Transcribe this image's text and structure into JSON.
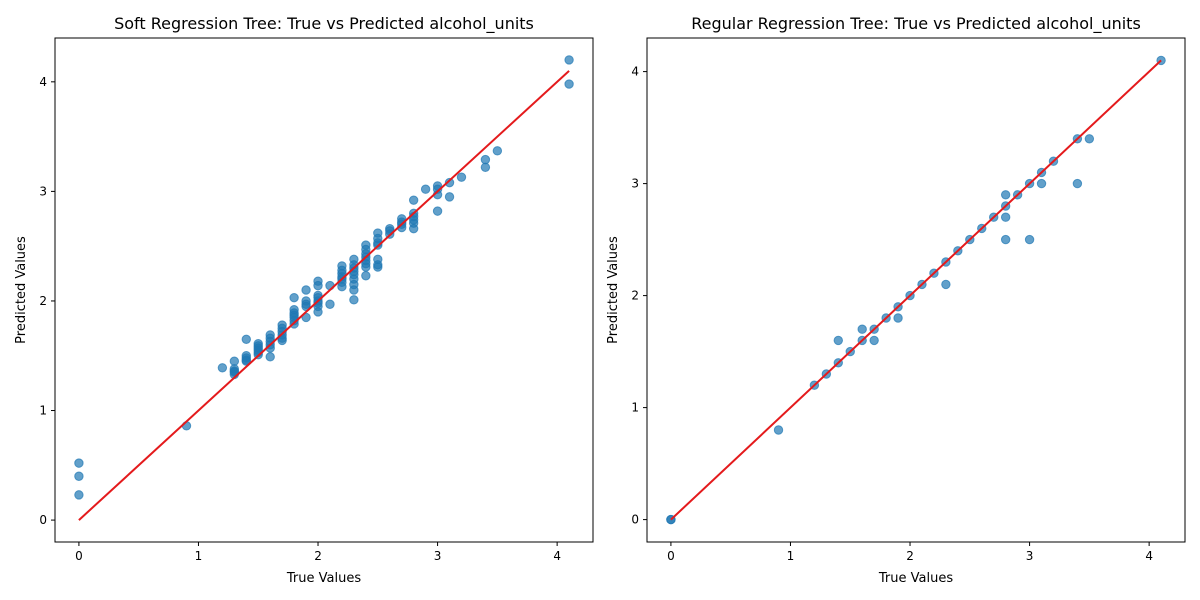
{
  "chart_data": [
    {
      "type": "scatter",
      "title": "Soft Regression Tree: True vs Predicted alcohol_units",
      "xlabel": "True Values",
      "ylabel": "Predicted Values",
      "xlim": [
        -0.2,
        4.3
      ],
      "ylim": [
        -0.2,
        4.4
      ],
      "xticks": [
        0,
        1,
        2,
        3,
        4
      ],
      "yticks": [
        0,
        1,
        2,
        3,
        4
      ],
      "point_color": "#1f77b4",
      "line_color": "#e41a1c",
      "reference_line": [
        [
          0,
          0
        ],
        [
          4.1,
          4.1
        ]
      ],
      "points": [
        [
          0.0,
          0.52
        ],
        [
          0.0,
          0.4
        ],
        [
          0.0,
          0.23
        ],
        [
          0.9,
          0.86
        ],
        [
          1.2,
          1.39
        ],
        [
          1.3,
          1.45
        ],
        [
          1.3,
          1.38
        ],
        [
          1.3,
          1.36
        ],
        [
          1.3,
          1.35
        ],
        [
          1.3,
          1.33
        ],
        [
          1.4,
          1.65
        ],
        [
          1.4,
          1.5
        ],
        [
          1.4,
          1.48
        ],
        [
          1.4,
          1.46
        ],
        [
          1.4,
          1.45
        ],
        [
          1.5,
          1.61
        ],
        [
          1.5,
          1.59
        ],
        [
          1.5,
          1.57
        ],
        [
          1.5,
          1.55
        ],
        [
          1.5,
          1.53
        ],
        [
          1.5,
          1.51
        ],
        [
          1.6,
          1.69
        ],
        [
          1.6,
          1.66
        ],
        [
          1.6,
          1.63
        ],
        [
          1.6,
          1.6
        ],
        [
          1.6,
          1.57
        ],
        [
          1.6,
          1.49
        ],
        [
          1.7,
          1.78
        ],
        [
          1.7,
          1.75
        ],
        [
          1.7,
          1.72
        ],
        [
          1.7,
          1.69
        ],
        [
          1.7,
          1.66
        ],
        [
          1.7,
          1.64
        ],
        [
          1.8,
          2.03
        ],
        [
          1.8,
          1.92
        ],
        [
          1.8,
          1.89
        ],
        [
          1.8,
          1.87
        ],
        [
          1.8,
          1.85
        ],
        [
          1.8,
          1.82
        ],
        [
          1.8,
          1.79
        ],
        [
          1.9,
          2.1
        ],
        [
          1.9,
          2.0
        ],
        [
          1.9,
          1.97
        ],
        [
          1.9,
          1.95
        ],
        [
          1.9,
          1.85
        ],
        [
          2.0,
          2.18
        ],
        [
          2.0,
          2.14
        ],
        [
          2.0,
          2.05
        ],
        [
          2.0,
          2.03
        ],
        [
          2.0,
          2.0
        ],
        [
          2.0,
          1.98
        ],
        [
          2.0,
          1.95
        ],
        [
          2.0,
          1.9
        ],
        [
          2.1,
          2.14
        ],
        [
          2.1,
          1.97
        ],
        [
          2.2,
          2.32
        ],
        [
          2.2,
          2.28
        ],
        [
          2.2,
          2.25
        ],
        [
          2.2,
          2.22
        ],
        [
          2.2,
          2.2
        ],
        [
          2.2,
          2.17
        ],
        [
          2.2,
          2.13
        ],
        [
          2.3,
          2.38
        ],
        [
          2.3,
          2.33
        ],
        [
          2.3,
          2.3
        ],
        [
          2.3,
          2.27
        ],
        [
          2.3,
          2.24
        ],
        [
          2.3,
          2.2
        ],
        [
          2.3,
          2.15
        ],
        [
          2.3,
          2.1
        ],
        [
          2.3,
          2.01
        ],
        [
          2.4,
          2.51
        ],
        [
          2.4,
          2.47
        ],
        [
          2.4,
          2.43
        ],
        [
          2.4,
          2.4
        ],
        [
          2.4,
          2.37
        ],
        [
          2.4,
          2.34
        ],
        [
          2.4,
          2.31
        ],
        [
          2.4,
          2.23
        ],
        [
          2.5,
          2.62
        ],
        [
          2.5,
          2.57
        ],
        [
          2.5,
          2.53
        ],
        [
          2.5,
          2.51
        ],
        [
          2.5,
          2.38
        ],
        [
          2.5,
          2.33
        ],
        [
          2.5,
          2.31
        ],
        [
          2.6,
          2.66
        ],
        [
          2.6,
          2.64
        ],
        [
          2.6,
          2.61
        ],
        [
          2.7,
          2.75
        ],
        [
          2.7,
          2.72
        ],
        [
          2.7,
          2.7
        ],
        [
          2.7,
          2.67
        ],
        [
          2.8,
          2.92
        ],
        [
          2.8,
          2.8
        ],
        [
          2.8,
          2.77
        ],
        [
          2.8,
          2.74
        ],
        [
          2.8,
          2.71
        ],
        [
          2.8,
          2.66
        ],
        [
          2.9,
          3.02
        ],
        [
          3.0,
          3.05
        ],
        [
          3.0,
          3.02
        ],
        [
          3.0,
          2.97
        ],
        [
          3.0,
          2.82
        ],
        [
          3.1,
          3.08
        ],
        [
          3.1,
          2.95
        ],
        [
          3.2,
          3.13
        ],
        [
          3.4,
          3.29
        ],
        [
          3.4,
          3.22
        ],
        [
          3.5,
          3.37
        ],
        [
          4.1,
          4.2
        ],
        [
          4.1,
          3.98
        ]
      ]
    },
    {
      "type": "scatter",
      "title": "Regular Regression Tree: True vs Predicted alcohol_units",
      "xlabel": "True Values",
      "ylabel": "Predicted Values",
      "xlim": [
        -0.2,
        4.3
      ],
      "ylim": [
        -0.2,
        4.3
      ],
      "xticks": [
        0,
        1,
        2,
        3,
        4
      ],
      "yticks": [
        0,
        1,
        2,
        3,
        4
      ],
      "point_color": "#1f77b4",
      "line_color": "#e41a1c",
      "reference_line": [
        [
          0,
          0
        ],
        [
          4.1,
          4.1
        ]
      ],
      "points": [
        [
          0.0,
          0.0
        ],
        [
          0.0,
          0.0
        ],
        [
          0.9,
          0.8
        ],
        [
          1.2,
          1.2
        ],
        [
          1.3,
          1.3
        ],
        [
          1.4,
          1.4
        ],
        [
          1.4,
          1.6
        ],
        [
          1.5,
          1.5
        ],
        [
          1.6,
          1.6
        ],
        [
          1.6,
          1.7
        ],
        [
          1.7,
          1.7
        ],
        [
          1.7,
          1.6
        ],
        [
          1.8,
          1.8
        ],
        [
          1.9,
          1.9
        ],
        [
          1.9,
          1.8
        ],
        [
          2.0,
          2.0
        ],
        [
          2.1,
          2.1
        ],
        [
          2.2,
          2.2
        ],
        [
          2.3,
          2.3
        ],
        [
          2.3,
          2.1
        ],
        [
          2.4,
          2.4
        ],
        [
          2.5,
          2.5
        ],
        [
          2.6,
          2.6
        ],
        [
          2.7,
          2.7
        ],
        [
          2.8,
          2.8
        ],
        [
          2.8,
          2.9
        ],
        [
          2.8,
          2.7
        ],
        [
          2.8,
          2.5
        ],
        [
          2.9,
          2.9
        ],
        [
          3.0,
          3.0
        ],
        [
          3.0,
          2.5
        ],
        [
          3.1,
          3.1
        ],
        [
          3.1,
          3.0
        ],
        [
          3.2,
          3.2
        ],
        [
          3.4,
          3.4
        ],
        [
          3.4,
          3.0
        ],
        [
          3.5,
          3.4
        ],
        [
          4.1,
          4.1
        ]
      ]
    }
  ]
}
